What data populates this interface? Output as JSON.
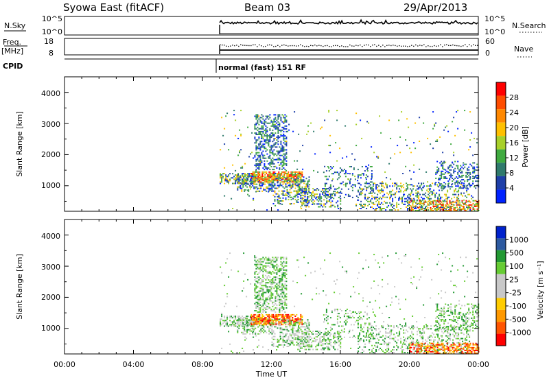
{
  "header": {
    "station": "Syowa East (fitACF)",
    "beam": "Beam 03",
    "date": "29/Apr/2013"
  },
  "sky_panel": {
    "left_label": "N.Sky",
    "left_ticks": [
      "10^5",
      "10^0"
    ],
    "right_label": "N.Search",
    "right_ticks": [
      "10^5",
      "10^0"
    ]
  },
  "freq_panel": {
    "left_label_top": "Freq.",
    "left_label_unit": "[MHz]",
    "left_ticks": [
      "18",
      "8"
    ],
    "right_label": "Nave",
    "right_ticks": [
      "60",
      "0"
    ]
  },
  "cpid_panel": {
    "label": "CPID",
    "text": "normal (fast) 151 RF"
  },
  "colors": {
    "power": [
      "#0022ff",
      "#1e3fa8",
      "#2f7a6c",
      "#3faa3f",
      "#a8d02a",
      "#ffc000",
      "#ff8800",
      "#ff4d00",
      "#ff0000"
    ],
    "velocity": [
      "#ff0000",
      "#ff5500",
      "#ff9900",
      "#ffcc00",
      "#c8c8c8",
      "#c8c8c8",
      "#66cc33",
      "#229933",
      "#2d5aa0",
      "#0022cc"
    ]
  },
  "chart_data": [
    {
      "type": "heatmap",
      "name": "power",
      "ylabel": "Slant Range [km]",
      "ylim": [
        180,
        4500
      ],
      "yticks": [
        "1000",
        "2000",
        "3000",
        "4000"
      ],
      "colorbar_label": "Power [dB]",
      "colorbar_ticks": [
        "4",
        "8",
        "12",
        "16",
        "20",
        "24",
        "28"
      ],
      "data_start_hour": 9.0
    },
    {
      "type": "heatmap",
      "name": "velocity",
      "ylabel": "Slant Range [km]",
      "ylim": [
        180,
        4500
      ],
      "yticks": [
        "1000",
        "2000",
        "3000",
        "4000"
      ],
      "colorbar_label": "Velocity [m s⁻¹]",
      "colorbar_ticks": [
        "1000",
        "500",
        "100",
        "25",
        "-25",
        "-100",
        "-500",
        "-1000"
      ],
      "data_start_hour": 9.0
    }
  ],
  "time_axis": {
    "ticks": [
      "00:00",
      "04:00",
      "08:00",
      "12:00",
      "16:00",
      "20:00",
      "00:00"
    ],
    "xlabel": "Time UT"
  }
}
